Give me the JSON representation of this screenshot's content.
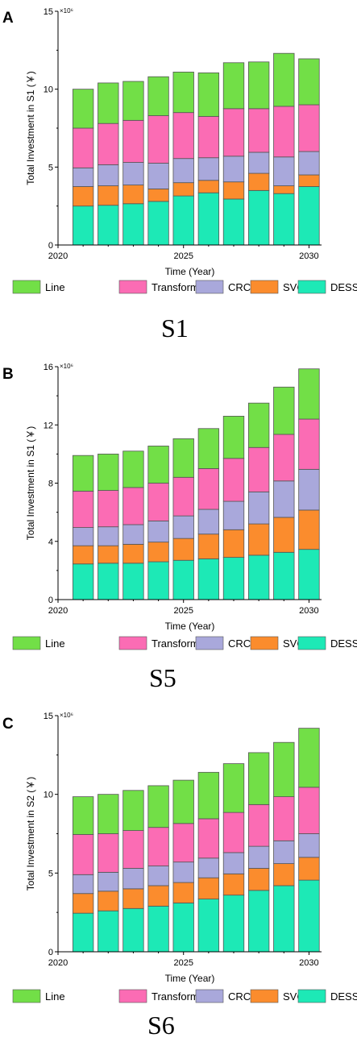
{
  "chart_data": [
    {
      "type": "bar",
      "stacked": true,
      "panel_label": "A",
      "scenario_label": "S1",
      "xlabel": "Time (Year)",
      "ylabel": "Total Investment in S1 (￥)",
      "y_multiplier_label": "×10⁶",
      "ylim": [
        0,
        15
      ],
      "yticks": [
        "0",
        "5",
        "10",
        "15"
      ],
      "xticks": [
        "2020",
        "2025",
        "2030"
      ],
      "xlim": [
        2020,
        2030.5
      ],
      "x": [
        2021,
        2022,
        2023,
        2024,
        2025,
        2026,
        2027,
        2028,
        2029,
        2030
      ],
      "series": [
        {
          "name": "DESS",
          "color": "#1de9b6",
          "values": [
            2.5,
            2.55,
            2.65,
            2.8,
            3.15,
            3.35,
            2.95,
            3.5,
            3.3,
            3.75
          ]
        },
        {
          "name": "SVC",
          "color": "#fb8c2d",
          "values": [
            1.25,
            1.25,
            1.2,
            0.8,
            0.85,
            0.8,
            1.1,
            1.1,
            0.5,
            0.75
          ]
        },
        {
          "name": "CRC",
          "color": "#a9a8db",
          "values": [
            1.2,
            1.35,
            1.45,
            1.65,
            1.55,
            1.45,
            1.65,
            1.35,
            1.85,
            1.5
          ]
        },
        {
          "name": "Transformer",
          "color": "#fb6cb4",
          "values": [
            2.55,
            2.65,
            2.7,
            3.05,
            2.95,
            2.65,
            3.05,
            2.8,
            3.25,
            3.0
          ]
        },
        {
          "name": "Line",
          "color": "#72df47",
          "values": [
            2.5,
            2.6,
            2.5,
            2.5,
            2.6,
            2.8,
            2.95,
            3.0,
            3.4,
            2.95
          ]
        }
      ]
    },
    {
      "type": "bar",
      "stacked": true,
      "panel_label": "B",
      "scenario_label": "S5",
      "xlabel": "Time (Year)",
      "ylabel": "Total Investment in S1 (￥)",
      "y_multiplier_label": "×10⁶",
      "ylim": [
        0,
        16
      ],
      "yticks": [
        "0",
        "4",
        "8",
        "12",
        "16"
      ],
      "xticks": [
        "2020",
        "2025",
        "2030"
      ],
      "xlim": [
        2020,
        2030.5
      ],
      "x": [
        2021,
        2022,
        2023,
        2024,
        2025,
        2026,
        2027,
        2028,
        2029,
        2030
      ],
      "series": [
        {
          "name": "DESS",
          "color": "#1de9b6",
          "values": [
            2.45,
            2.5,
            2.5,
            2.6,
            2.7,
            2.8,
            2.9,
            3.05,
            3.25,
            3.45
          ]
        },
        {
          "name": "SVC",
          "color": "#fb8c2d",
          "values": [
            1.25,
            1.2,
            1.3,
            1.35,
            1.5,
            1.7,
            1.9,
            2.15,
            2.4,
            2.7
          ]
        },
        {
          "name": "CRC",
          "color": "#a9a8db",
          "values": [
            1.25,
            1.3,
            1.35,
            1.45,
            1.55,
            1.7,
            1.95,
            2.2,
            2.5,
            2.8
          ]
        },
        {
          "name": "Transformer",
          "color": "#fb6cb4",
          "values": [
            2.5,
            2.5,
            2.55,
            2.6,
            2.65,
            2.8,
            2.95,
            3.05,
            3.2,
            3.45
          ]
        },
        {
          "name": "Line",
          "color": "#72df47",
          "values": [
            2.45,
            2.5,
            2.5,
            2.55,
            2.65,
            2.75,
            2.9,
            3.05,
            3.25,
            3.45
          ]
        }
      ]
    },
    {
      "type": "bar",
      "stacked": true,
      "panel_label": "C",
      "scenario_label": "S6",
      "xlabel": "Time (Year)",
      "ylabel": "Total Investment in S2 (￥)",
      "y_multiplier_label": "×10⁶",
      "ylim": [
        0,
        15
      ],
      "yticks": [
        "0",
        "5",
        "10",
        "15"
      ],
      "xticks": [
        "2020",
        "2025",
        "2030"
      ],
      "xlim": [
        2020,
        2030.5
      ],
      "x": [
        2021,
        2022,
        2023,
        2024,
        2025,
        2026,
        2027,
        2028,
        2029,
        2030
      ],
      "series": [
        {
          "name": "DESS",
          "color": "#1de9b6",
          "values": [
            2.45,
            2.6,
            2.75,
            2.9,
            3.1,
            3.35,
            3.6,
            3.9,
            4.2,
            4.55
          ]
        },
        {
          "name": "SVC",
          "color": "#fb8c2d",
          "values": [
            1.25,
            1.25,
            1.25,
            1.3,
            1.3,
            1.35,
            1.35,
            1.4,
            1.4,
            1.45
          ]
        },
        {
          "name": "CRC",
          "color": "#a9a8db",
          "values": [
            1.2,
            1.2,
            1.3,
            1.25,
            1.3,
            1.25,
            1.35,
            1.4,
            1.45,
            1.5
          ]
        },
        {
          "name": "Transformer",
          "color": "#fb6cb4",
          "values": [
            2.55,
            2.45,
            2.4,
            2.45,
            2.45,
            2.5,
            2.55,
            2.65,
            2.8,
            2.95
          ]
        },
        {
          "name": "Line",
          "color": "#72df47",
          "values": [
            2.4,
            2.5,
            2.55,
            2.65,
            2.75,
            2.95,
            3.1,
            3.3,
            3.45,
            3.75
          ]
        }
      ]
    }
  ],
  "legend": [
    {
      "name": "Line",
      "color": "#72df47"
    },
    {
      "name": "Transformer",
      "color": "#fb6cb4"
    },
    {
      "name": "CRC",
      "color": "#a9a8db"
    },
    {
      "name": "SVC",
      "color": "#fb8c2d"
    },
    {
      "name": "DESS",
      "color": "#1de9b6"
    }
  ]
}
